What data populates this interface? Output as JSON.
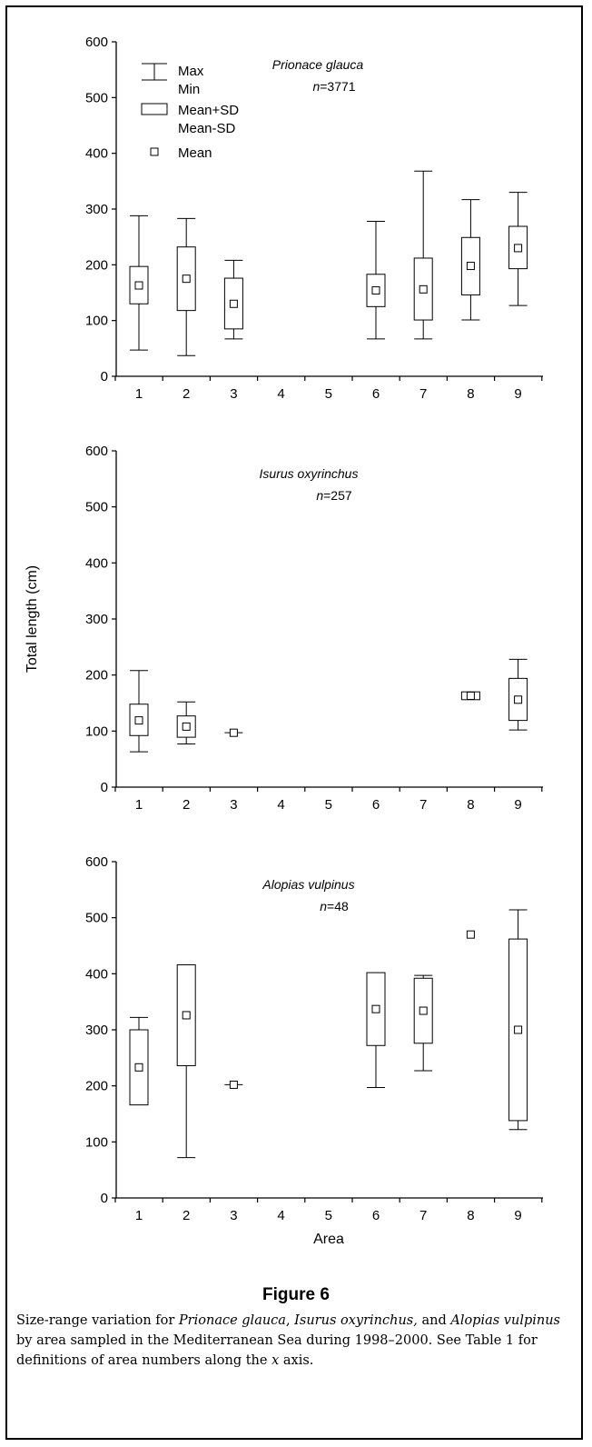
{
  "chart_data": [
    {
      "type": "boxplot",
      "species": "Prionace glauca",
      "n_label": "n=3771",
      "n_value": "3771",
      "ylim": [
        0,
        600
      ],
      "yticks": [
        0,
        100,
        200,
        300,
        400,
        500,
        600
      ],
      "categories": [
        "1",
        "2",
        "3",
        "4",
        "5",
        "6",
        "7",
        "8",
        "9"
      ],
      "boxes": [
        {
          "area": "1",
          "min": 47,
          "max": 288,
          "mean_minus_sd": 130,
          "mean_plus_sd": 197,
          "mean": 163
        },
        {
          "area": "2",
          "min": 37,
          "max": 283,
          "mean_minus_sd": 118,
          "mean_plus_sd": 232,
          "mean": 175
        },
        {
          "area": "3",
          "min": 67,
          "max": 208,
          "mean_minus_sd": 85,
          "mean_plus_sd": 176,
          "mean": 130
        },
        {
          "area": "6",
          "min": 67,
          "max": 278,
          "mean_minus_sd": 125,
          "mean_plus_sd": 183,
          "mean": 154
        },
        {
          "area": "7",
          "min": 67,
          "max": 368,
          "mean_minus_sd": 101,
          "mean_plus_sd": 212,
          "mean": 156
        },
        {
          "area": "8",
          "min": 101,
          "max": 317,
          "mean_minus_sd": 146,
          "mean_plus_sd": 249,
          "mean": 198
        },
        {
          "area": "9",
          "min": 127,
          "max": 330,
          "mean_minus_sd": 193,
          "mean_plus_sd": 269,
          "mean": 230
        }
      ],
      "legend": {
        "max": "Max",
        "min": "Min",
        "mean_plus_sd": "Mean+SD",
        "mean_minus_sd": "Mean-SD",
        "mean": "Mean"
      }
    },
    {
      "type": "boxplot",
      "species": "Isurus oxyrinchus",
      "n_label": "n=257",
      "n_value": "257",
      "ylim": [
        0,
        600
      ],
      "yticks": [
        0,
        100,
        200,
        300,
        400,
        500,
        600
      ],
      "categories": [
        "1",
        "2",
        "3",
        "4",
        "5",
        "6",
        "7",
        "8",
        "9"
      ],
      "ylabel": "Total length (cm)",
      "boxes": [
        {
          "area": "1",
          "min": 63,
          "max": 208,
          "mean_minus_sd": 92,
          "mean_plus_sd": 148,
          "mean": 119
        },
        {
          "area": "2",
          "min": 77,
          "max": 152,
          "mean_minus_sd": 89,
          "mean_plus_sd": 127,
          "mean": 108
        },
        {
          "area": "3",
          "min": 97,
          "max": 97,
          "mean_minus_sd": 97,
          "mean_plus_sd": 97,
          "mean": 97
        },
        {
          "area": "8",
          "min": 156,
          "max": 170,
          "mean_minus_sd": 156,
          "mean_plus_sd": 170,
          "mean": 163
        },
        {
          "area": "9",
          "min": 102,
          "max": 228,
          "mean_minus_sd": 119,
          "mean_plus_sd": 194,
          "mean": 156
        }
      ]
    },
    {
      "type": "boxplot",
      "species": "Alopias vulpinus",
      "n_label": "n=48",
      "n_value": "48",
      "ylim": [
        0,
        600
      ],
      "yticks": [
        0,
        100,
        200,
        300,
        400,
        500,
        600
      ],
      "categories": [
        "1",
        "2",
        "3",
        "4",
        "5",
        "6",
        "7",
        "8",
        "9"
      ],
      "xlabel": "Area",
      "boxes": [
        {
          "area": "1",
          "min": 166,
          "max": 322,
          "mean_minus_sd": 166,
          "mean_plus_sd": 300,
          "mean": 233
        },
        {
          "area": "2",
          "min": 72,
          "max": 416,
          "mean_minus_sd": 236,
          "mean_plus_sd": 416,
          "mean": 326
        },
        {
          "area": "3",
          "min": 202,
          "max": 202,
          "mean_minus_sd": 202,
          "mean_plus_sd": 202,
          "mean": 202
        },
        {
          "area": "6",
          "min": 197,
          "max": 402,
          "mean_minus_sd": 272,
          "mean_plus_sd": 402,
          "mean": 337
        },
        {
          "area": "7",
          "min": 227,
          "max": 397,
          "mean_minus_sd": 276,
          "mean_plus_sd": 392,
          "mean": 334
        },
        {
          "area": "8",
          "min": 470,
          "max": 470,
          "mean_minus_sd": 470,
          "mean_plus_sd": 470,
          "mean": 470
        },
        {
          "area": "9",
          "min": 122,
          "max": 514,
          "mean_minus_sd": 138,
          "mean_plus_sd": 462,
          "mean": 300
        }
      ]
    }
  ],
  "figure": {
    "title": "Figure 6",
    "caption_parts": [
      "Size-range variation for ",
      "Prionace glauca",
      ", ",
      "Isurus oxyrinchus,",
      " and ",
      "Alopias vulpinus",
      " by area sampled in the Mediterranean Sea during 1998–2000. See Table 1 for definitions of area numbers along the ",
      "x",
      " axis."
    ]
  }
}
